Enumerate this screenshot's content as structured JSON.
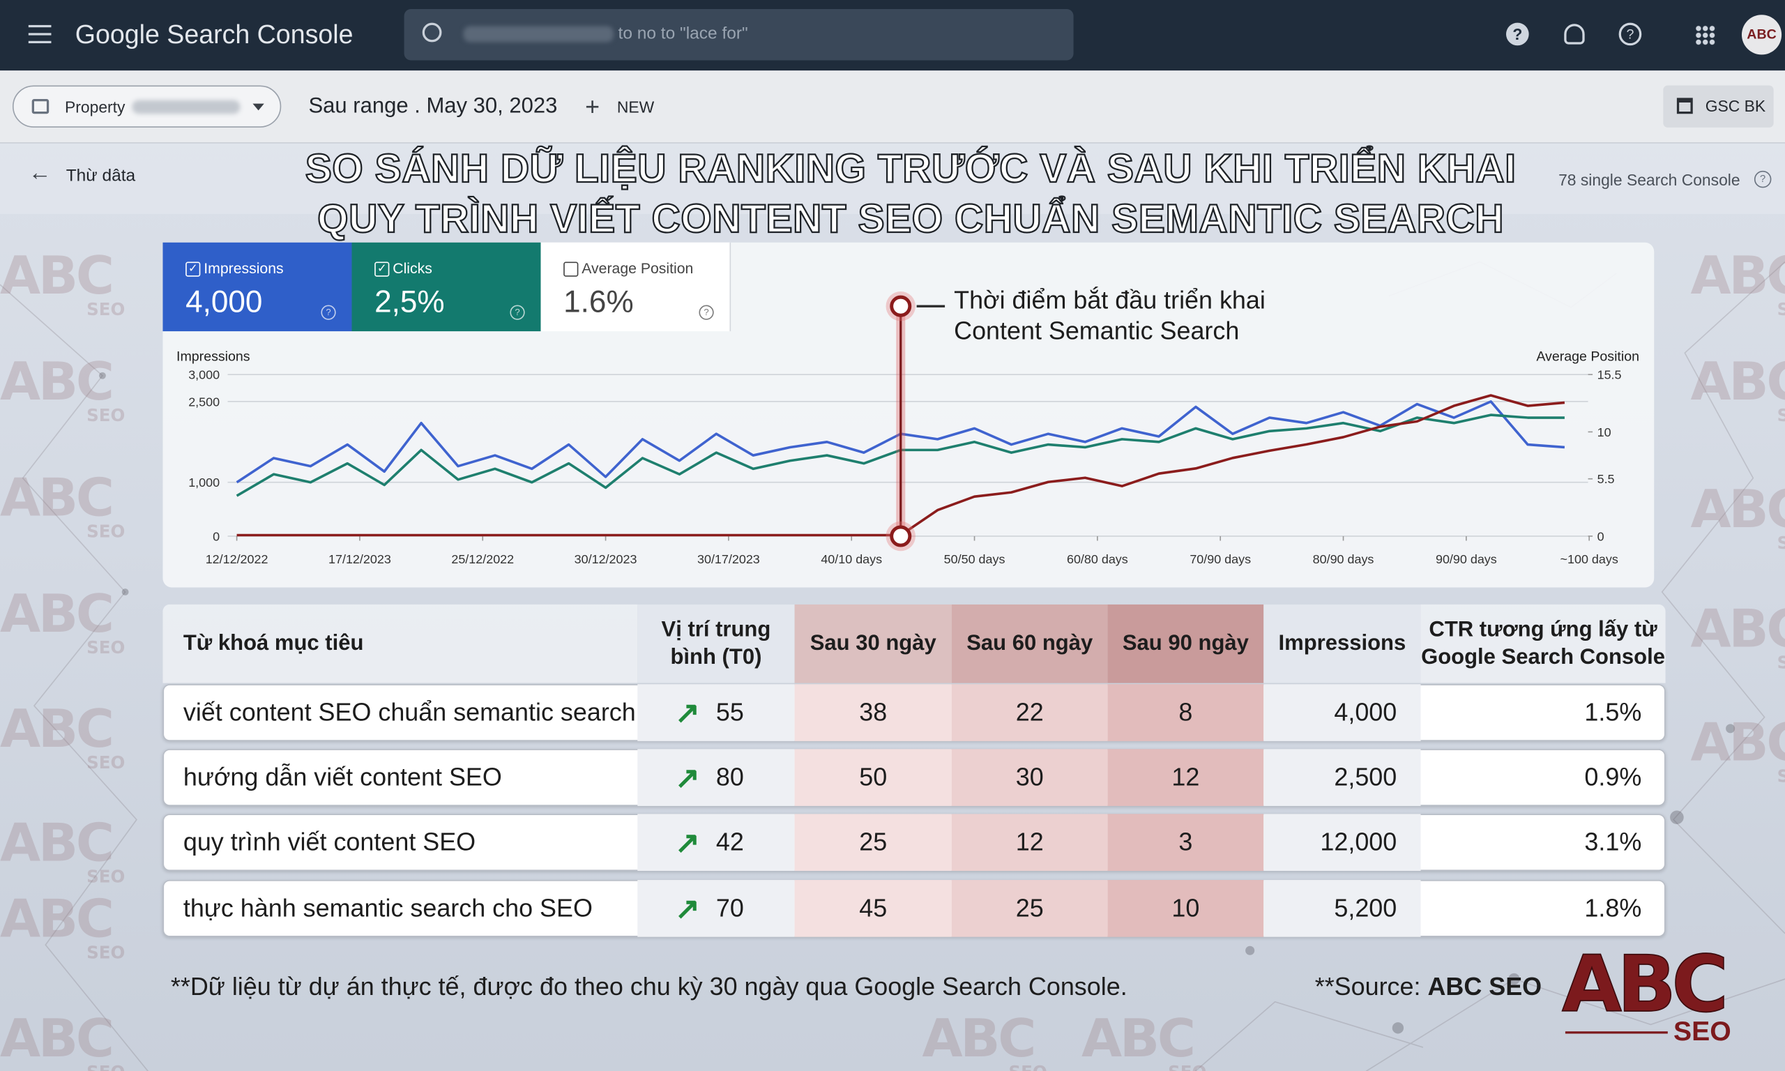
{
  "header": {
    "app_name": "Google Search Console",
    "search_placeholder": "to no to \"lace for\"",
    "avatar": "ABC"
  },
  "toolbar": {
    "property": "Property",
    "date_range": "Sau range . May 30, 2023",
    "new_button": "NEW",
    "export_button": "GSC BK"
  },
  "subbar": {
    "back": "Thừ dâta",
    "right_note": "78 single Search Console"
  },
  "title": [
    "SO SÁNH DỮ LIỆU RANKING TRƯỚC VÀ SAU KHI TRIỂN KHAI",
    "QUY TRÌNH VIẾT CONTENT SEO CHUẨN SEMANTIC SEARCH"
  ],
  "metric_cards": [
    {
      "value": "4,000",
      "checked": true,
      "color": "#2f5fc9"
    },
    {
      "value": "2,5%",
      "checked": true,
      "color": "#137a6e"
    },
    {
      "value": "1.6%",
      "checked": false,
      "color": "#ffffff"
    }
  ],
  "chart_data": {
    "type": "line",
    "y_label": "Impressions",
    "y2_label": "Average Position",
    "x": [
      0,
      3,
      6,
      9,
      12,
      15,
      18,
      21,
      24,
      27,
      30,
      33,
      36,
      39,
      42,
      45,
      48,
      51,
      54,
      57,
      60,
      63,
      66,
      69,
      72,
      75,
      78,
      81,
      84,
      87,
      90,
      93,
      96,
      99,
      102,
      105,
      108
    ],
    "xlim": [
      0,
      110
    ],
    "xticks": [
      {
        "value": 0,
        "label": "12/12/2022"
      },
      {
        "value": 10,
        "label": "17/12/2023"
      },
      {
        "value": 20,
        "label": "25/12/2022"
      },
      {
        "value": 30,
        "label": "30/12/2023"
      },
      {
        "value": 40,
        "label": "30/17/2023"
      },
      {
        "value": 50,
        "label": "40/10 days"
      },
      {
        "value": 60,
        "label": "50/50 days"
      },
      {
        "value": 70,
        "label": "60/80 days"
      },
      {
        "value": 80,
        "label": "70/90 days"
      },
      {
        "value": 90,
        "label": "80/90 days"
      },
      {
        "value": 100,
        "label": "90/90 days"
      },
      {
        "value": 110,
        "label": "~100 days"
      }
    ],
    "ylim": [
      0,
      3000
    ],
    "yticks": [
      0,
      {
        "value": 1000,
        "label": "1,000"
      },
      {
        "value": 2500,
        "label": "2,500"
      },
      {
        "value": 3000,
        "label": "3,000"
      }
    ],
    "y2lim": [
      0,
      15.5
    ],
    "y2ticks": [
      0,
      5.5,
      10,
      15.5
    ],
    "grid": true,
    "series": [
      {
        "name": "Impressions",
        "color": "#3f63cf",
        "axis": "y",
        "values": [
          1000,
          1450,
          1300,
          1700,
          1200,
          2100,
          1300,
          1500,
          1250,
          1700,
          1100,
          1800,
          1400,
          1900,
          1500,
          1650,
          1750,
          1550,
          1900,
          1800,
          2000,
          1700,
          1900,
          1750,
          2000,
          1850,
          2400,
          1900,
          2200,
          2100,
          2300,
          2050,
          2450,
          2200,
          2500,
          1700,
          1650
        ]
      },
      {
        "name": "Clicks",
        "color": "#1e7f6e",
        "axis": "y",
        "values": [
          750,
          1150,
          1000,
          1350,
          950,
          1600,
          1050,
          1250,
          1000,
          1350,
          900,
          1450,
          1150,
          1550,
          1250,
          1400,
          1500,
          1350,
          1600,
          1600,
          1750,
          1550,
          1700,
          1650,
          1800,
          1750,
          2000,
          1800,
          1950,
          2000,
          2100,
          1950,
          2200,
          2100,
          2250,
          2200,
          2200
        ]
      },
      {
        "name": "Average Position",
        "color": "#8b1c1c",
        "axis": "y2",
        "values": [
          0.1,
          0.1,
          0.1,
          0.1,
          0.1,
          0.1,
          0.1,
          0.1,
          0.1,
          0.1,
          0.1,
          0.1,
          0.1,
          0.1,
          0.1,
          0.1,
          0.1,
          0.1,
          0.1,
          2.5,
          3.8,
          4.2,
          5.2,
          5.6,
          4.8,
          6,
          6.5,
          7.5,
          8.2,
          8.8,
          9.5,
          10.5,
          11,
          12.5,
          13.5,
          12.5,
          12.8
        ]
      }
    ],
    "annotation": {
      "x": 54,
      "text": [
        "Thời điểm bắt đầu triển khai",
        "Content Semantic Search"
      ]
    }
  },
  "table": {
    "headers": [
      "Từ khoá mục tiêu",
      "Vị trí trung bình (T0)",
      "Sau 30 ngày",
      "Sau 60 ngày",
      "Sau 90 ngày",
      "Impressions",
      "CTR tương ứng lấy từ Google Search Console"
    ],
    "rows": [
      [
        "viết content SEO chuẩn semantic search",
        "55",
        "38",
        "22",
        "8",
        "4,000",
        "1.5%"
      ],
      [
        "hướng dẫn viết content SEO",
        "80",
        "50",
        "30",
        "12",
        "2,500",
        "0.9%"
      ],
      [
        "quy trình viết content SEO",
        "42",
        "25",
        "12",
        "3",
        "12,000",
        "3.1%"
      ],
      [
        "thực hành semantic search cho SEO",
        "70",
        "45",
        "25",
        "10",
        "5,200",
        "1.8%"
      ]
    ]
  },
  "footer": {
    "note": "**Dữ liệu từ dự án thực tế, được đo theo chu kỳ 30 ngày qua Google Search Console.",
    "source_label": "**Source:",
    "source_name": "ABC SEO"
  },
  "logo": {
    "brand": "ABC",
    "tag": "SEO"
  }
}
